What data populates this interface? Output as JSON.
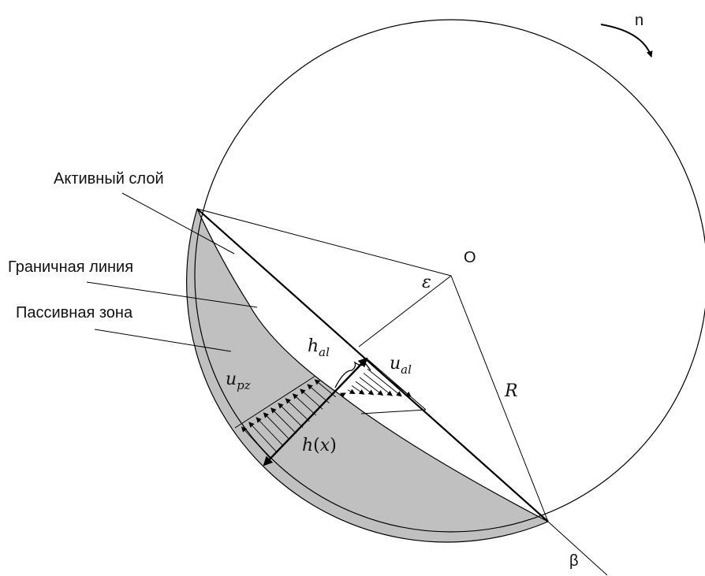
{
  "labels": {
    "active_layer": "Активный слой",
    "boundary_line": "Граничная линия",
    "passive_zone": "Пассивная зона",
    "rotation": "n",
    "center": "O",
    "epsilon": "ε",
    "radius": "R",
    "beta": "β"
  },
  "math": {
    "h_al": {
      "base": "h",
      "sub": "al"
    },
    "u_al": {
      "base": "u",
      "sub": "al"
    },
    "u_pz": {
      "base": "u",
      "sub": "pz"
    },
    "h_x": {
      "base": "h",
      "open": "(",
      "var": "x",
      "close": ")"
    }
  },
  "colors": {
    "passive_zone_fill": "#c0c0c0",
    "stroke": "#000000",
    "background": "#ffffff"
  }
}
